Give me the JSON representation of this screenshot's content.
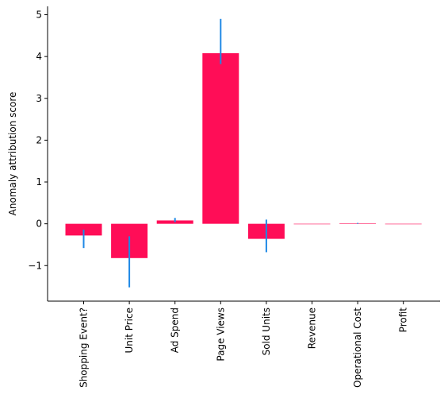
{
  "chart_data": {
    "type": "bar",
    "title": "",
    "xlabel": "",
    "ylabel": "Anomaly attribution score",
    "categories": [
      "Shopping Event?",
      "Unit Price",
      "Ad Spend",
      "Page Views",
      "Sold Units",
      "Revenue",
      "Operational Cost",
      "Profit"
    ],
    "values": [
      -0.28,
      -0.82,
      0.08,
      4.08,
      -0.36,
      0.0,
      0.01,
      0.0
    ],
    "error_low": [
      -0.58,
      -1.52,
      0.04,
      3.82,
      -0.68,
      0.0,
      0.0,
      0.0
    ],
    "error_high": [
      -0.14,
      -0.3,
      0.14,
      4.9,
      0.1,
      0.0,
      0.02,
      0.0
    ],
    "ylim": [
      -1.85,
      5.2
    ],
    "yticks": [
      -1,
      0,
      1,
      2,
      3,
      4,
      5
    ],
    "ytick_labels": [
      "−1",
      "0",
      "1",
      "2",
      "3",
      "4",
      "5"
    ],
    "grid": false,
    "colors": {
      "bar": "#ff0d57",
      "error": "#1e88e5",
      "axis": "#000000"
    }
  }
}
